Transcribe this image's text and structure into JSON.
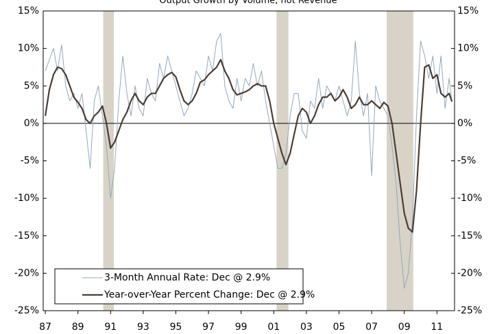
{
  "chart_data": {
    "type": "line",
    "title": "Output Growth by Volume, not Revenue",
    "x": [
      1987,
      1987.25,
      1987.5,
      1987.75,
      1988,
      1988.25,
      1988.5,
      1988.75,
      1989,
      1989.25,
      1989.5,
      1989.75,
      1990,
      1990.25,
      1990.5,
      1990.75,
      1991,
      1991.25,
      1991.5,
      1991.75,
      1992,
      1992.25,
      1992.5,
      1992.75,
      1993,
      1993.25,
      1993.5,
      1993.75,
      1994,
      1994.25,
      1994.5,
      1994.75,
      1995,
      1995.25,
      1995.5,
      1995.75,
      1996,
      1996.25,
      1996.5,
      1996.75,
      1997,
      1997.25,
      1997.5,
      1997.75,
      1998,
      1998.25,
      1998.5,
      1998.75,
      1999,
      1999.25,
      1999.5,
      1999.75,
      2000,
      2000.25,
      2000.5,
      2000.75,
      2001,
      2001.25,
      2001.5,
      2001.75,
      2002,
      2002.25,
      2002.5,
      2002.75,
      2003,
      2003.25,
      2003.5,
      2003.75,
      2004,
      2004.25,
      2004.5,
      2004.75,
      2005,
      2005.25,
      2005.5,
      2005.75,
      2006,
      2006.25,
      2006.5,
      2006.75,
      2007,
      2007.25,
      2007.5,
      2007.75,
      2008,
      2008.25,
      2008.5,
      2008.75,
      2009,
      2009.25,
      2009.5,
      2009.75,
      2010,
      2010.25,
      2010.5,
      2010.75,
      2011,
      2011.25,
      2011.5,
      2011.75,
      2011.92
    ],
    "series": [
      {
        "name": "3-Month Annual Rate: Dec @ 2.9%",
        "color": "#8fa8bf",
        "width": 1,
        "values": [
          7,
          8.5,
          10,
          7,
          10.5,
          5,
          3,
          4,
          2,
          4,
          -1,
          -6,
          3,
          5,
          1,
          -3,
          -10,
          -6,
          3,
          9,
          4,
          1,
          5,
          2,
          1,
          6,
          4,
          3,
          8,
          6,
          9,
          7,
          5,
          3,
          1,
          2,
          4,
          7,
          6,
          5,
          9,
          7,
          11,
          12,
          5,
          3,
          2,
          6,
          3,
          6,
          5,
          8,
          5,
          7,
          3,
          0,
          -3,
          -6,
          -6,
          -4,
          1,
          4,
          4,
          -1,
          -2,
          3,
          2,
          6,
          2,
          5,
          4,
          3,
          5,
          3,
          1,
          3,
          11,
          4,
          1,
          4,
          -7,
          5,
          3,
          2,
          1,
          -3,
          -8,
          -16,
          -22,
          -20,
          -13,
          1,
          11,
          9,
          6,
          9,
          4,
          9,
          2,
          6,
          2.9
        ]
      },
      {
        "name": "Year-over-Year Percent Change: Dec @ 2.9%",
        "color": "#4a3c33",
        "width": 2.2,
        "values": [
          1,
          4.5,
          6.5,
          7.5,
          7.3,
          6.5,
          5,
          3.5,
          2.8,
          2,
          0.5,
          0,
          1,
          1.5,
          2.3,
          0,
          -3.3,
          -2.5,
          -1,
          0.5,
          1.5,
          3,
          4,
          3,
          2.5,
          3.5,
          4,
          4,
          5,
          6,
          6.5,
          6.8,
          6.2,
          4.5,
          3,
          2.5,
          3,
          4,
          5.5,
          5.8,
          6.5,
          7,
          7.5,
          8.5,
          7,
          6,
          4.5,
          3.8,
          4,
          4.2,
          4.5,
          5,
          5.3,
          5,
          5,
          3,
          0,
          -2,
          -4,
          -5.5,
          -4,
          -1.5,
          1,
          2,
          1.5,
          0,
          1,
          2.5,
          3.5,
          3.5,
          4,
          3,
          3.5,
          4.5,
          3.5,
          2,
          2.5,
          3.5,
          2.5,
          2.5,
          3,
          2.5,
          2,
          2.8,
          2.3,
          0,
          -4,
          -8,
          -12,
          -14,
          -14.5,
          -9,
          0,
          7.5,
          7.8,
          6,
          6.5,
          4,
          3.5,
          4,
          2.9
        ]
      }
    ],
    "shaded_periods": [
      {
        "start": 1990.55,
        "end": 1991.2
      },
      {
        "start": 2001.17,
        "end": 2001.9
      },
      {
        "start": 2007.92,
        "end": 2009.55
      }
    ],
    "shade_color": "#d8d3c6",
    "xlim": [
      1986.87,
      2012.08
    ],
    "xticks": [
      {
        "value": 1987,
        "label": "87"
      },
      {
        "value": 1989,
        "label": "89"
      },
      {
        "value": 1991,
        "label": "91"
      },
      {
        "value": 1993,
        "label": "93"
      },
      {
        "value": 1995,
        "label": "95"
      },
      {
        "value": 1997,
        "label": "97"
      },
      {
        "value": 1999,
        "label": "99"
      },
      {
        "value": 2001,
        "label": "01"
      },
      {
        "value": 2003,
        "label": "03"
      },
      {
        "value": 2005,
        "label": "05"
      },
      {
        "value": 2007,
        "label": "07"
      },
      {
        "value": 2009,
        "label": "09"
      },
      {
        "value": 2011,
        "label": "11"
      }
    ],
    "ylim": [
      -25,
      15
    ],
    "yticks": [
      {
        "value": -25,
        "label": "-25%"
      },
      {
        "value": -20,
        "label": "-20%"
      },
      {
        "value": -15,
        "label": "-15%"
      },
      {
        "value": -10,
        "label": "-10%"
      },
      {
        "value": -5,
        "label": "-5%"
      },
      {
        "value": 0,
        "label": "0%"
      },
      {
        "value": 5,
        "label": "5%"
      },
      {
        "value": 10,
        "label": "10%"
      },
      {
        "value": 15,
        "label": "15%"
      }
    ],
    "y2lim": [
      -25,
      15
    ],
    "y2ticks": [
      {
        "value": -25,
        "label": "-25%"
      },
      {
        "value": -20,
        "label": "-20%"
      },
      {
        "value": -15,
        "label": "-15%"
      },
      {
        "value": -10,
        "label": "-10%"
      },
      {
        "value": -5,
        "label": "-5%"
      },
      {
        "value": 0,
        "label": "0%"
      },
      {
        "value": 5,
        "label": "5%"
      },
      {
        "value": 10,
        "label": "10%"
      },
      {
        "value": 15,
        "label": "15%"
      }
    ],
    "legend": "lower-left"
  }
}
